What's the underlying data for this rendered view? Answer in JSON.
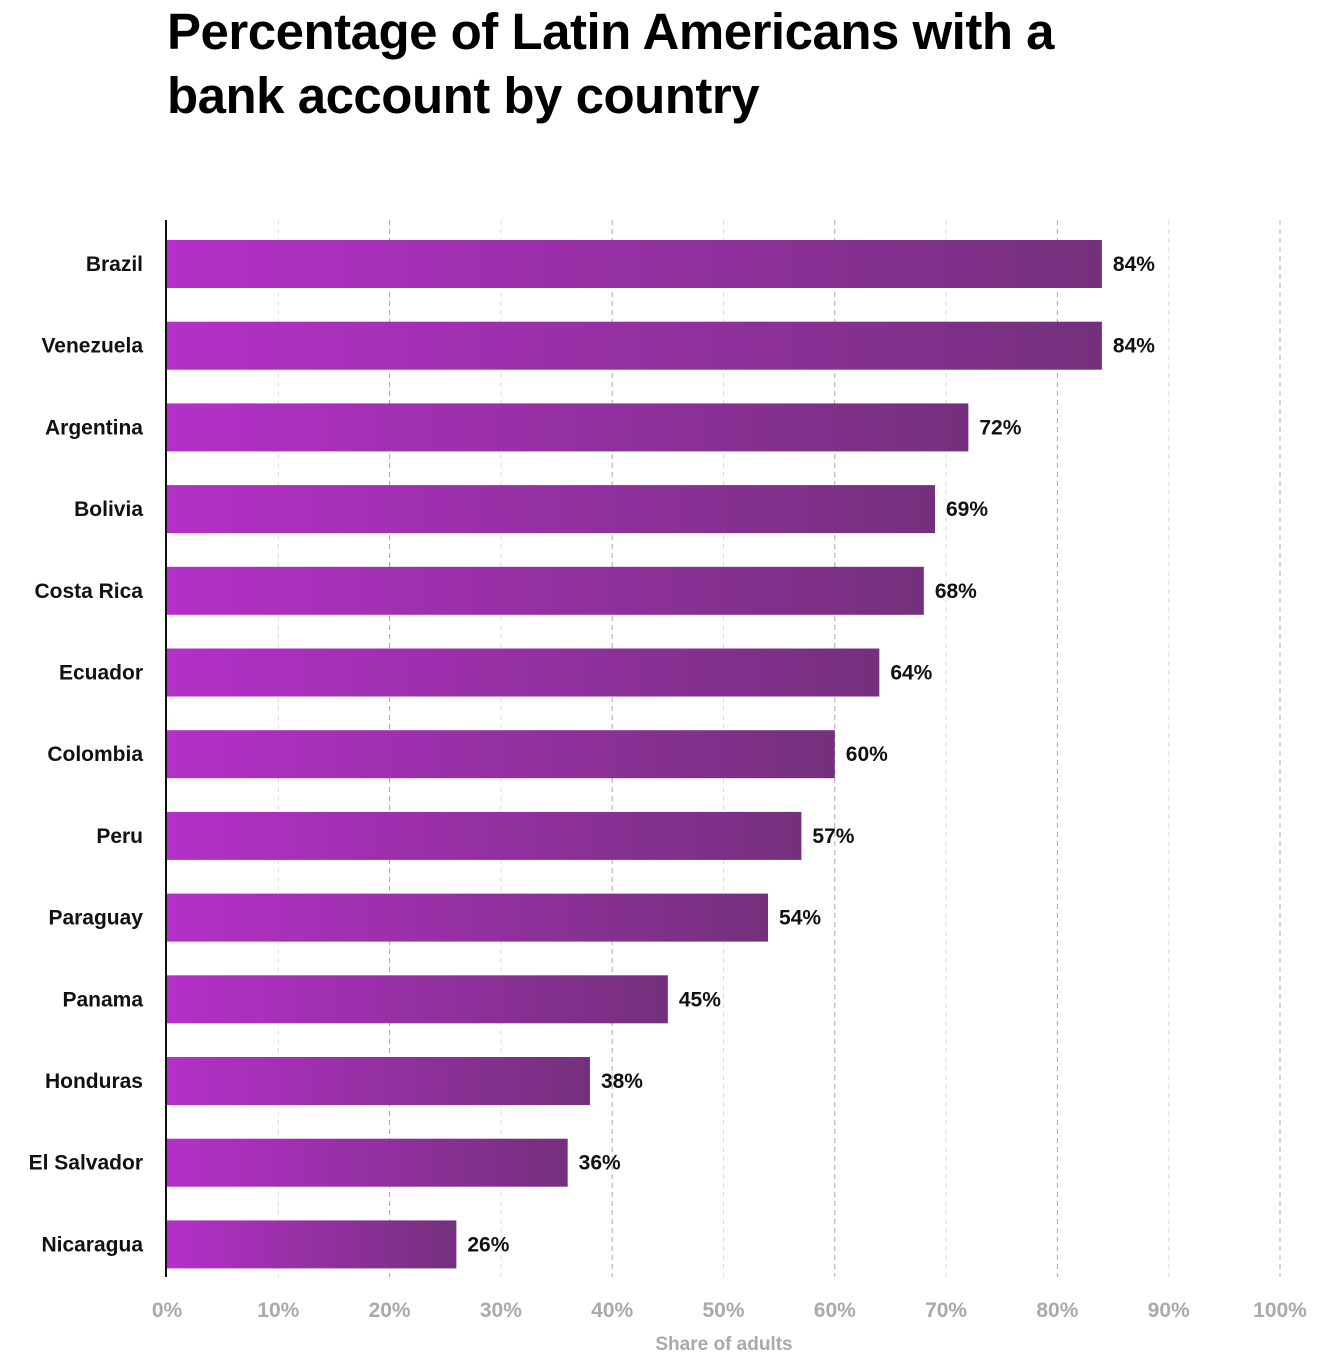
{
  "chart_data": {
    "type": "bar",
    "orientation": "horizontal",
    "title": "Percentage of Latin Americans with a bank account by country",
    "xlabel": "Share of adults",
    "ylabel": "",
    "xlim": [
      0,
      100
    ],
    "grid": true,
    "categories": [
      "Brazil",
      "Venezuela",
      "Argentina",
      "Bolivia",
      "Costa Rica",
      "Ecuador",
      "Colombia",
      "Peru",
      "Paraguay",
      "Panama",
      "Honduras",
      "El Salvador",
      "Nicaragua"
    ],
    "values": [
      84,
      84,
      72,
      69,
      68,
      64,
      60,
      57,
      54,
      45,
      38,
      36,
      26
    ],
    "data_labels": [
      "84%",
      "84%",
      "72%",
      "69%",
      "68%",
      "64%",
      "60%",
      "57%",
      "54%",
      "45%",
      "38%",
      "36%",
      "26%"
    ],
    "ticks": [
      "0%",
      "10%",
      "20%",
      "30%",
      "40%",
      "50%",
      "60%",
      "70%",
      "80%",
      "90%",
      "100%"
    ],
    "colors": {
      "bar_start": "#b430c8",
      "bar_end": "#74307c"
    }
  }
}
